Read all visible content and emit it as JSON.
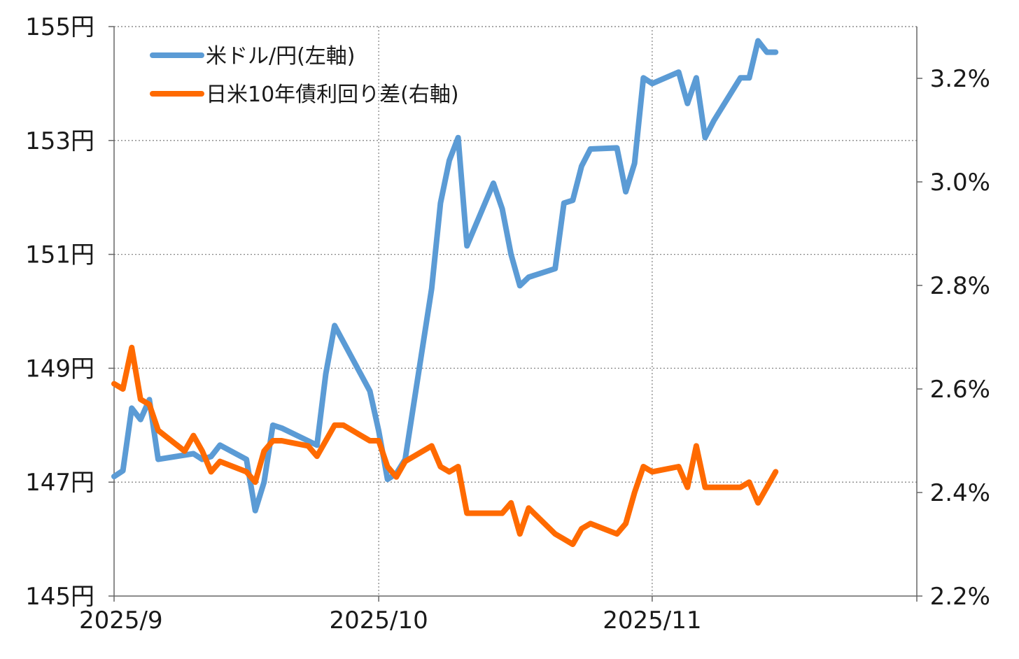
{
  "chart_data": {
    "type": "line",
    "title": "",
    "x_ticks": [
      "2025/9",
      "2025/10",
      "2025/11"
    ],
    "y_left": {
      "ticks": [
        "145円",
        "147円",
        "149円",
        "151円",
        "153円",
        "155円"
      ],
      "min": 145,
      "max": 155
    },
    "y_right": {
      "ticks": [
        "2.2%",
        "2.4%",
        "2.6%",
        "2.8%",
        "3.0%",
        "3.2%"
      ],
      "min": 2.2,
      "max": 3.3
    },
    "x_range": {
      "start": "2025-09-01",
      "end": "2025-12-01"
    },
    "grid": true,
    "legend_position": "top-left",
    "series": [
      {
        "name": "米ドル/円(左軸)",
        "axis": "left",
        "color": "#5b9bd5",
        "points": [
          [
            "2025-09-01",
            147.1
          ],
          [
            "2025-09-02",
            147.2
          ],
          [
            "2025-09-03",
            148.3
          ],
          [
            "2025-09-04",
            148.1
          ],
          [
            "2025-09-05",
            148.45
          ],
          [
            "2025-09-06",
            147.4
          ],
          [
            "2025-09-10",
            147.5
          ],
          [
            "2025-09-11",
            147.4
          ],
          [
            "2025-09-12",
            147.45
          ],
          [
            "2025-09-13",
            147.65
          ],
          [
            "2025-09-16",
            147.4
          ],
          [
            "2025-09-17",
            146.5
          ],
          [
            "2025-09-18",
            147.0
          ],
          [
            "2025-09-19",
            148.0
          ],
          [
            "2025-09-20",
            147.95
          ],
          [
            "2025-09-24",
            147.65
          ],
          [
            "2025-09-25",
            148.9
          ],
          [
            "2025-09-26",
            149.75
          ],
          [
            "2025-09-30",
            148.6
          ],
          [
            "2025-10-01",
            147.9
          ],
          [
            "2025-10-02",
            147.05
          ],
          [
            "2025-10-03",
            147.15
          ],
          [
            "2025-10-04",
            147.4
          ],
          [
            "2025-10-07",
            150.4
          ],
          [
            "2025-10-08",
            151.9
          ],
          [
            "2025-10-09",
            152.65
          ],
          [
            "2025-10-10",
            153.05
          ],
          [
            "2025-10-11",
            151.15
          ],
          [
            "2025-10-14",
            152.25
          ],
          [
            "2025-10-15",
            151.8
          ],
          [
            "2025-10-16",
            151.0
          ],
          [
            "2025-10-17",
            150.45
          ],
          [
            "2025-10-18",
            150.6
          ],
          [
            "2025-10-21",
            150.75
          ],
          [
            "2025-10-22",
            151.9
          ],
          [
            "2025-10-23",
            151.95
          ],
          [
            "2025-10-24",
            152.55
          ],
          [
            "2025-10-25",
            152.85
          ],
          [
            "2025-10-28",
            152.87
          ],
          [
            "2025-10-29",
            152.1
          ],
          [
            "2025-10-30",
            152.6
          ],
          [
            "2025-10-31",
            154.1
          ],
          [
            "2025-11-01",
            154.0
          ],
          [
            "2025-11-04",
            154.2
          ],
          [
            "2025-11-05",
            153.65
          ],
          [
            "2025-11-06",
            154.1
          ],
          [
            "2025-11-07",
            153.05
          ],
          [
            "2025-11-08",
            153.35
          ],
          [
            "2025-11-11",
            154.1
          ],
          [
            "2025-11-12",
            154.1
          ],
          [
            "2025-11-13",
            154.75
          ],
          [
            "2025-11-14",
            154.55
          ],
          [
            "2025-11-15",
            154.55
          ]
        ]
      },
      {
        "name": "日米10年債利回り差(右軸)",
        "axis": "right",
        "color": "#ff6a00",
        "points": [
          [
            "2025-09-01",
            2.61
          ],
          [
            "2025-09-02",
            2.6
          ],
          [
            "2025-09-03",
            2.68
          ],
          [
            "2025-09-04",
            2.58
          ],
          [
            "2025-09-05",
            2.57
          ],
          [
            "2025-09-06",
            2.52
          ],
          [
            "2025-09-09",
            2.48
          ],
          [
            "2025-09-10",
            2.51
          ],
          [
            "2025-09-11",
            2.48
          ],
          [
            "2025-09-12",
            2.44
          ],
          [
            "2025-09-13",
            2.46
          ],
          [
            "2025-09-16",
            2.44
          ],
          [
            "2025-09-17",
            2.42
          ],
          [
            "2025-09-18",
            2.48
          ],
          [
            "2025-09-19",
            2.5
          ],
          [
            "2025-09-20",
            2.5
          ],
          [
            "2025-09-23",
            2.49
          ],
          [
            "2025-09-24",
            2.47
          ],
          [
            "2025-09-25",
            2.5
          ],
          [
            "2025-09-26",
            2.53
          ],
          [
            "2025-09-27",
            2.53
          ],
          [
            "2025-09-30",
            2.5
          ],
          [
            "2025-10-01",
            2.5
          ],
          [
            "2025-10-02",
            2.45
          ],
          [
            "2025-10-03",
            2.43
          ],
          [
            "2025-10-04",
            2.46
          ],
          [
            "2025-10-07",
            2.49
          ],
          [
            "2025-10-08",
            2.45
          ],
          [
            "2025-10-09",
            2.44
          ],
          [
            "2025-10-10",
            2.45
          ],
          [
            "2025-10-11",
            2.36
          ],
          [
            "2025-10-14",
            2.36
          ],
          [
            "2025-10-15",
            2.36
          ],
          [
            "2025-10-16",
            2.38
          ],
          [
            "2025-10-17",
            2.32
          ],
          [
            "2025-10-18",
            2.37
          ],
          [
            "2025-10-21",
            2.32
          ],
          [
            "2025-10-22",
            2.31
          ],
          [
            "2025-10-23",
            2.3
          ],
          [
            "2025-10-24",
            2.33
          ],
          [
            "2025-10-25",
            2.34
          ],
          [
            "2025-10-28",
            2.32
          ],
          [
            "2025-10-29",
            2.34
          ],
          [
            "2025-10-30",
            2.4
          ],
          [
            "2025-10-31",
            2.45
          ],
          [
            "2025-11-01",
            2.44
          ],
          [
            "2025-11-04",
            2.45
          ],
          [
            "2025-11-05",
            2.41
          ],
          [
            "2025-11-06",
            2.49
          ],
          [
            "2025-11-07",
            2.41
          ],
          [
            "2025-11-08",
            2.41
          ],
          [
            "2025-11-11",
            2.41
          ],
          [
            "2025-11-12",
            2.42
          ],
          [
            "2025-11-13",
            2.38
          ],
          [
            "2025-11-14",
            2.41
          ],
          [
            "2025-11-15",
            2.44
          ]
        ]
      }
    ]
  }
}
